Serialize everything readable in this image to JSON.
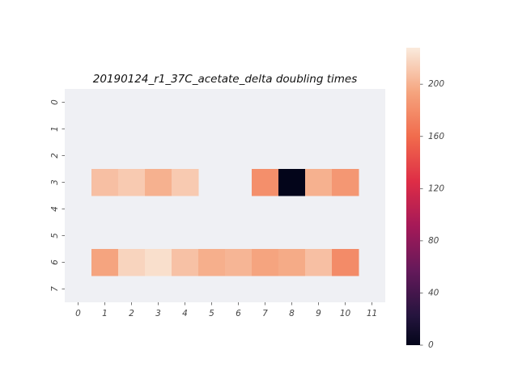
{
  "chart_data": {
    "type": "heatmap",
    "title": "20190124_r1_37C_acetate_delta doubling times",
    "xlabel": "",
    "ylabel": "",
    "x_tick_labels": [
      "0",
      "1",
      "2",
      "3",
      "4",
      "5",
      "6",
      "7",
      "8",
      "9",
      "10",
      "11"
    ],
    "y_tick_labels": [
      "0",
      "1",
      "2",
      "3",
      "4",
      "5",
      "6",
      "7"
    ],
    "grid": false,
    "missing_color": "#eff0f4",
    "values": [
      [
        null,
        null,
        null,
        null,
        null,
        null,
        null,
        null,
        null,
        null,
        null,
        null
      ],
      [
        null,
        null,
        null,
        null,
        null,
        null,
        null,
        null,
        null,
        null,
        null,
        null
      ],
      [
        null,
        null,
        null,
        null,
        null,
        null,
        null,
        null,
        null,
        null,
        null,
        null
      ],
      [
        null,
        207,
        212,
        200,
        212,
        null,
        null,
        181,
        0,
        200,
        186,
        null
      ],
      [
        null,
        null,
        null,
        null,
        null,
        null,
        null,
        null,
        null,
        null,
        null,
        null
      ],
      [
        null,
        null,
        null,
        null,
        null,
        null,
        null,
        null,
        null,
        null,
        null,
        null
      ],
      [
        null,
        194,
        217,
        222,
        208,
        199,
        202,
        194,
        197,
        207,
        179,
        null
      ],
      [
        null,
        null,
        null,
        null,
        null,
        null,
        null,
        null,
        null,
        null,
        null,
        null
      ]
    ],
    "colorbar": {
      "vmin": 0,
      "vmax": 228,
      "ticks": [
        0,
        40,
        80,
        120,
        160,
        200
      ],
      "tick_labels": [
        "0",
        "40",
        "80",
        "120",
        "160",
        "200"
      ],
      "colormap": "rocket"
    }
  }
}
